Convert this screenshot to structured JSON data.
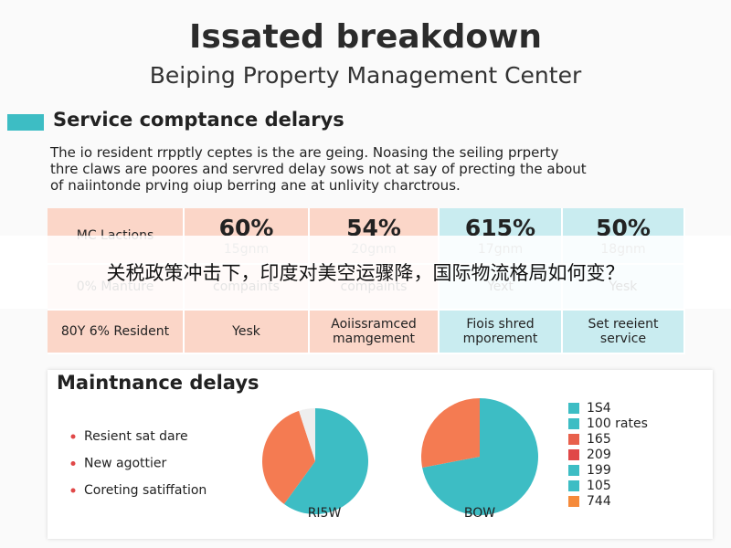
{
  "header": {
    "title": "Issated breakdown",
    "subtitle": "Beiping Property Management Center"
  },
  "section": {
    "heading": "Service comptance delarys",
    "paragraph": [
      "The io resident rrpptly ceptes is the are geing. Noasing the seiling prperty",
      "thre claws are poores and servred delay sows not at say of precting the about",
      "of naiintonde prving oiup berring ane at unlivity charctrous."
    ]
  },
  "table": {
    "rows": [
      [
        [
          "MC Lactions"
        ],
        [
          "60%",
          "15gnm"
        ],
        [
          "54%",
          "20gnm"
        ],
        [
          "615%",
          "17gnm"
        ],
        [
          "50%",
          "18gnm"
        ]
      ],
      [
        [
          "0% Manture"
        ],
        [
          "compaints"
        ],
        [
          "compaints"
        ],
        [
          "Yext"
        ],
        [
          "Yesk"
        ]
      ],
      [
        [
          "80Y 6% Resident"
        ],
        [
          "Yesk"
        ],
        [
          "Aoiissramced",
          "mamgement"
        ],
        [
          "Fiois shred",
          "mporement"
        ],
        [
          "Set reeient",
          "service"
        ]
      ]
    ]
  },
  "banner": "关税政策冲击下，印度对美空运骤降，国际物流格局如何变？",
  "panel": {
    "heading": "Maintnance delays",
    "bullets": [
      "Resient sat dare",
      "New agottier",
      "Coreting satiffation"
    ],
    "pies": [
      {
        "label": "RI5W",
        "slices": [
          {
            "value": 60,
            "color": "#3dbdc4"
          },
          {
            "value": 35,
            "color": "#f47b52"
          },
          {
            "value": 5,
            "color": "#eeeeee"
          }
        ]
      },
      {
        "label": "BOW",
        "slices": [
          {
            "value": 72,
            "color": "#3dbdc4"
          },
          {
            "value": 28,
            "color": "#f47b52"
          }
        ]
      }
    ],
    "legend": [
      {
        "label": "1S4",
        "color": "#3dbdc4"
      },
      {
        "label": "100 rates",
        "color": "#3dbdc4"
      },
      {
        "label": "165",
        "color": "#e8604c"
      },
      {
        "label": "209",
        "color": "#e04848"
      },
      {
        "label": "199",
        "color": "#3dbdc4"
      },
      {
        "label": "105",
        "color": "#3dbdc4"
      },
      {
        "label": "744",
        "color": "#f58a3a"
      }
    ]
  }
}
